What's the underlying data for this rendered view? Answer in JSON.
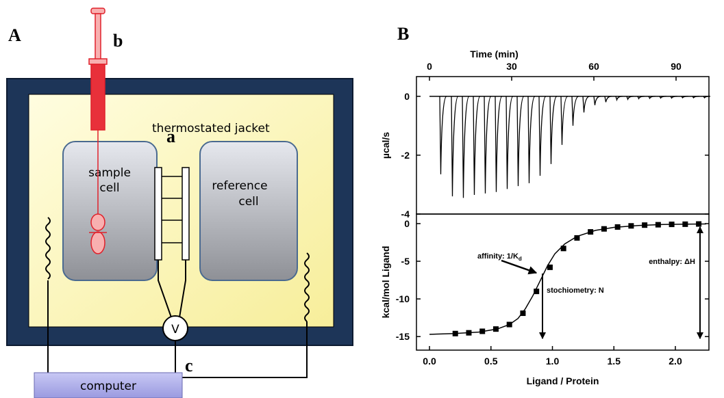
{
  "panel_a": {
    "label": "A",
    "syringe_label": "b",
    "jacket_label": "thermostated jacket",
    "cell_label": "a",
    "sample_cell": [
      "sample",
      "cell"
    ],
    "reference_cell": [
      "reference",
      "cell"
    ],
    "voltmeter": "V",
    "computer_label": "c",
    "computer": "computer"
  },
  "panel_b": {
    "label": "B"
  },
  "chart_data": [
    {
      "type": "thermogram",
      "x_label": "Time (min)",
      "y_label": "µcal/s",
      "color": "#000000",
      "xlim": [
        -4.75,
        102
      ],
      "xticks": [
        0,
        30,
        60,
        90
      ],
      "ylim": [
        -4,
        0.67
      ],
      "yticks": [
        0,
        -2,
        -4
      ],
      "x": [
        3.75,
        8,
        12,
        16,
        20,
        24,
        28,
        32,
        36,
        40,
        44,
        48,
        52,
        56,
        60,
        64,
        68,
        72,
        76,
        80,
        84,
        88,
        92,
        96,
        100
      ],
      "values": [
        -2.65,
        -3.4,
        -3.45,
        -3.35,
        -3.3,
        -3.25,
        -3.15,
        -3.05,
        -2.95,
        -2.7,
        -2.3,
        -1.65,
        -1.0,
        -0.55,
        -0.3,
        -0.2,
        -0.12,
        -0.1,
        -0.08,
        -0.07,
        -0.06,
        -0.06,
        -0.05,
        -0.05,
        -0.05
      ],
      "baseline": {
        "x": [
          0,
          101
        ],
        "values": [
          0,
          0
        ]
      }
    },
    {
      "type": "scatter",
      "x_label": "Ligand / Protein",
      "y_label": "kcal/mol Ligand",
      "color": "#000000",
      "xlim": [
        -0.106,
        2.273
      ],
      "xticks": [
        {
          "value": 0,
          "label": "0.0"
        },
        {
          "value": 0.5,
          "label": "0.5"
        },
        {
          "value": 1,
          "label": "1.0"
        },
        {
          "value": 1.5,
          "label": "1.5"
        },
        {
          "value": 2,
          "label": "2.0"
        }
      ],
      "ylim": [
        -16.8,
        1.27
      ],
      "yticks": [
        0,
        -5,
        -10,
        -15
      ],
      "x": [
        0.21,
        0.32,
        0.43,
        0.54,
        0.65,
        0.76,
        0.87,
        0.98,
        1.09,
        1.2,
        1.31,
        1.42,
        1.53,
        1.64,
        1.75,
        1.86,
        1.97,
        2.08,
        2.19
      ],
      "values": [
        -14.6,
        -14.5,
        -14.3,
        -14.0,
        -13.4,
        -11.9,
        -9.0,
        -5.8,
        -3.3,
        -1.9,
        -1.1,
        -0.7,
        -0.45,
        -0.3,
        -0.2,
        -0.15,
        -0.1,
        -0.08,
        -0.05
      ],
      "fit": {
        "x": [
          0,
          0.2,
          0.4,
          0.55,
          0.65,
          0.72,
          0.78,
          0.84,
          0.9,
          0.96,
          1.02,
          1.1,
          1.2,
          1.35,
          1.5,
          1.7,
          1.9,
          2.1,
          2.25
        ],
        "values": [
          -14.7,
          -14.6,
          -14.4,
          -14.0,
          -13.4,
          -12.6,
          -11.3,
          -9.6,
          -7.6,
          -5.6,
          -4.0,
          -2.7,
          -1.7,
          -0.9,
          -0.5,
          -0.25,
          -0.12,
          -0.07,
          -0.05
        ]
      },
      "annotations": {
        "affinity": {
          "text": "affinity: 1/K",
          "subscript": "d"
        },
        "stoichiometry": "stochiometry: N",
        "enthalpy": "enthalpy: ΔH"
      }
    }
  ]
}
